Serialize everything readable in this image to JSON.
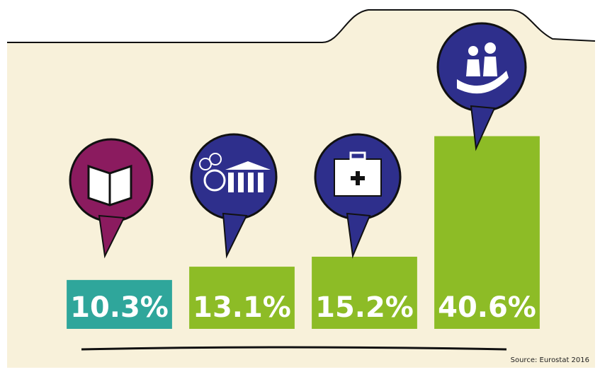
{
  "chart_data": {
    "type": "bar",
    "categories": [
      null,
      null,
      null,
      null
    ],
    "values": [
      10.3,
      13.1,
      15.2,
      40.6
    ],
    "value_labels": [
      "10.3%",
      "13.1%",
      "15.2%",
      "40.6%"
    ],
    "colors": [
      "#2fa69b",
      "#8dbc26",
      "#8dbc26",
      "#8dbc26"
    ],
    "ylim": [
      0,
      45
    ],
    "source": "Source: Eurostat 2016"
  }
}
